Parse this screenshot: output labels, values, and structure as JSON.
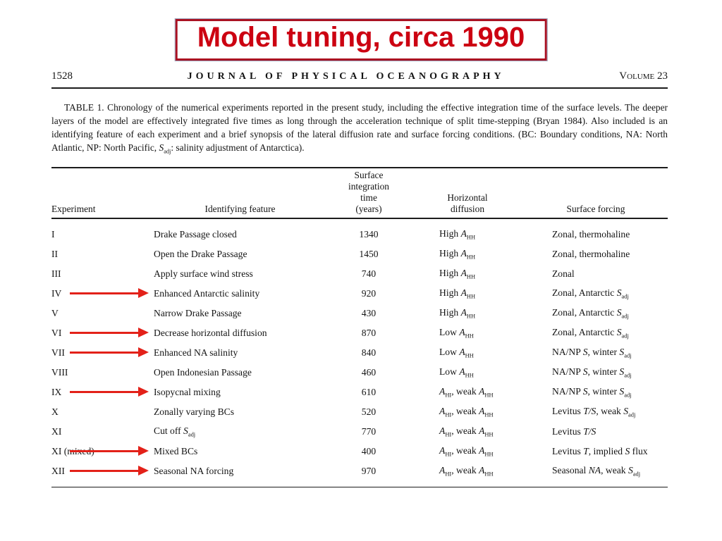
{
  "slide": {
    "title": "Model tuning,  circa 1990"
  },
  "journal": {
    "page_number": "1528",
    "name": "JOURNAL OF PHYSICAL OCEANOGRAPHY",
    "volume": "Volume 23"
  },
  "caption_html": "TABLE 1. Chronology of the numerical experiments reported in the present study, including the effective integration time of the surface levels. The deeper layers of the model are effectively integrated five times as long through the acceleration technique of split time-stepping (Bryan 1984). Also included is an identifying feature of each experiment and a brief synopsis of the lateral diffusion rate and surface forcing conditions. (BC: Boundary conditions, NA: North Atlantic, NP: North Pacific, <i>S</i><sub>adj</sub>: salinity adjustment of Antarctica).",
  "table": {
    "headers": {
      "experiment": "Experiment",
      "feature": "Identifying feature",
      "time": "Surface\nintegration\ntime\n(years)",
      "diffusion": "Horizontal\ndiffusion",
      "forcing": "Surface forcing"
    },
    "rows": [
      {
        "experiment": "I",
        "feature": "Drake Passage closed",
        "time": "1340",
        "diffusion": "High <i>A</i><sub>HH</sub>",
        "forcing": "Zonal, thermohaline",
        "arrow": false
      },
      {
        "experiment": "II",
        "feature": "Open the Drake Passage",
        "time": "1450",
        "diffusion": "High <i>A</i><sub>HH</sub>",
        "forcing": "Zonal, thermohaline",
        "arrow": false
      },
      {
        "experiment": "III",
        "feature": "Apply surface wind stress",
        "time": "740",
        "diffusion": "High <i>A</i><sub>HH</sub>",
        "forcing": "Zonal",
        "arrow": false
      },
      {
        "experiment": "IV",
        "feature": "Enhanced Antarctic salinity",
        "time": "920",
        "diffusion": "High <i>A</i><sub>HH</sub>",
        "forcing": "Zonal, Antarctic <i>S</i><sub>adj</sub>",
        "arrow": true
      },
      {
        "experiment": "V",
        "feature": "Narrow Drake Passage",
        "time": "430",
        "diffusion": "High <i>A</i><sub>HH</sub>",
        "forcing": "Zonal, Antarctic <i>S</i><sub>adj</sub>",
        "arrow": false
      },
      {
        "experiment": "VI",
        "feature": "Decrease horizontal diffusion",
        "time": "870",
        "diffusion": "Low <i>A</i><sub>HH</sub>",
        "forcing": "Zonal, Antarctic <i>S</i><sub>adj</sub>",
        "arrow": true
      },
      {
        "experiment": "VII",
        "feature": "Enhanced NA salinity",
        "time": "840",
        "diffusion": "Low <i>A</i><sub>HH</sub>",
        "forcing": "NA/NP <i>S</i>, winter <i>S</i><sub>adj</sub>",
        "arrow": true
      },
      {
        "experiment": "VIII",
        "feature": "Open Indonesian Passage",
        "time": "460",
        "diffusion": "Low <i>A</i><sub>HH</sub>",
        "forcing": "NA/NP <i>S</i>, winter <i>S</i><sub>adj</sub>",
        "arrow": false
      },
      {
        "experiment": "IX",
        "feature": "Isopycnal mixing",
        "time": "610",
        "diffusion": "<i>A</i><sub>HI</sub>, weak <i>A</i><sub>HH</sub>",
        "forcing": "NA/NP <i>S</i>, winter <i>S</i><sub>adj</sub>",
        "arrow": true
      },
      {
        "experiment": "X",
        "feature": "Zonally varying BCs",
        "time": "520",
        "diffusion": "<i>A</i><sub>HI</sub>, weak <i>A</i><sub>HH</sub>",
        "forcing": "Levitus <i>T/S</i>, weak <i>S</i><sub>adj</sub>",
        "arrow": false
      },
      {
        "experiment": "XI",
        "feature": "Cut off <i>S</i><sub>adj</sub>",
        "time": "770",
        "diffusion": "<i>A</i><sub>HI</sub>, weak <i>A</i><sub>HH</sub>",
        "forcing": "Levitus <i>T/S</i>",
        "arrow": false
      },
      {
        "experiment": "XI (mixed)",
        "feature": "Mixed BCs",
        "time": "400",
        "diffusion": "<i>A</i><sub>HI</sub>, weak <i>A</i><sub>HH</sub>",
        "forcing": "Levitus <i>T</i>, implied <i>S</i> flux",
        "arrow": true
      },
      {
        "experiment": "XII",
        "feature": "Seasonal NA forcing",
        "time": "970",
        "diffusion": "<i>A</i><sub>HI</sub>, weak <i>A</i><sub>HH</sub>",
        "forcing": "Seasonal <i>NA</i>, weak <i>S</i><sub>adj</sub>",
        "arrow": true
      }
    ]
  },
  "colors": {
    "title_red": "#cc0011",
    "arrow_red": "#e32119",
    "text": "#141414"
  }
}
